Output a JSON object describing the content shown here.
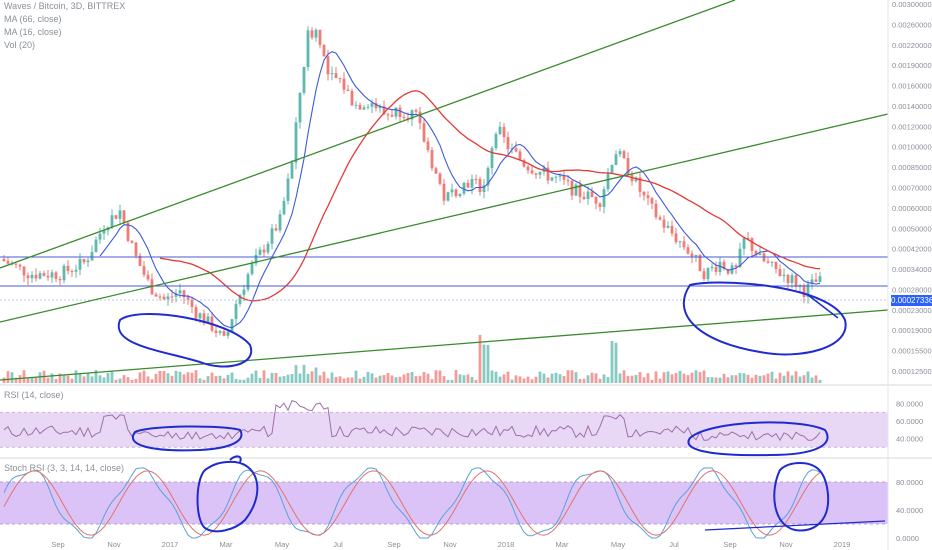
{
  "header": {
    "title": "Waves / Bitcoin, 3D, BITTREX",
    "ma1": "MA (66, close)",
    "ma2": "MA (16, close)",
    "vol": "Vol (20)",
    "rsi": "RSI (14, close)",
    "stoch": "Stoch RSI (3, 3, 14, 14, close)"
  },
  "last_price": "0.00027336",
  "colors": {
    "up": "#5fb8ad",
    "down": "#ef7a76",
    "ma_slow": "#e53935",
    "ma_fast": "#3b5bdb",
    "trendline": "#3a8a2e",
    "hline": "#4a5bd6",
    "annotation": "#1f2bd0",
    "rsi_band": "#e9d8f5",
    "rsi_line": "#9c6fa8",
    "stoch_band": "#dcc3f7",
    "stoch_k": "#5aa1d6",
    "stoch_d": "#e0736b",
    "axis_text": "#8a8f99"
  },
  "chart_data": [
    {
      "type": "line",
      "name": "price",
      "y_axis_ticks": [
        "0.00300000",
        "0.00260000",
        "0.00220000",
        "0.00190000",
        "0.00160000",
        "0.00140000",
        "0.00120000",
        "0.00100000",
        "0.00085000",
        "0.00070000",
        "0.00060000",
        "0.00050000",
        "0.00042000",
        "0.00034000",
        "0.00028000",
        "0.00023000",
        "0.00019000",
        "0.00015500",
        "0.00012500"
      ],
      "y_scale": "log",
      "x_axis_ticks": [
        "Sep",
        "Nov",
        "2017",
        "Mar",
        "May",
        "Jul",
        "Sep",
        "Nov",
        "2018",
        "Mar",
        "May",
        "Jul",
        "Sep",
        "Nov",
        "2019"
      ],
      "horizontal_levels": [
        0.00042,
        0.0003,
        0.00027336
      ],
      "series_ma": [
        "MA (66, close)",
        "MA (16, close)"
      ],
      "overlays": [
        "trend lines",
        "horizontal support/resistance",
        "hand-drawn annotation circles"
      ]
    },
    {
      "type": "line",
      "name": "RSI (14, close)",
      "y_axis_ticks": [
        "80.0000",
        "60.0000",
        "40.0000"
      ],
      "band": [
        30,
        70
      ]
    },
    {
      "type": "line",
      "name": "Stoch RSI (3, 3, 14, 14, close)",
      "y_axis_ticks": [
        "80.0000",
        "40.0000",
        "0.0000"
      ],
      "band": [
        20,
        80
      ]
    }
  ]
}
